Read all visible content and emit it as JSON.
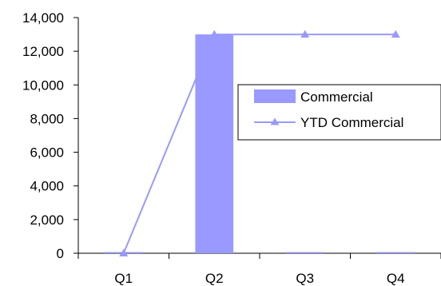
{
  "chart_data": {
    "type": "bar",
    "categories": [
      "Q1",
      "Q2",
      "Q3",
      "Q4"
    ],
    "series": [
      {
        "name": "Commercial",
        "type": "bar",
        "color": "#9999FF",
        "values": [
          0,
          13000,
          0,
          0
        ]
      },
      {
        "name": "YTD Commercial",
        "type": "line",
        "marker": "triangle",
        "color": "#9999FF",
        "values": [
          0,
          13000,
          13000,
          13000
        ]
      }
    ],
    "ylim": [
      0,
      14000
    ],
    "y_ticks": [
      {
        "value": 0,
        "label": "0"
      },
      {
        "value": 2000,
        "label": "2,000"
      },
      {
        "value": 4000,
        "label": "4,000"
      },
      {
        "value": 6000,
        "label": "6,000"
      },
      {
        "value": 8000,
        "label": "8,000"
      },
      {
        "value": 10000,
        "label": "10,000"
      },
      {
        "value": 12000,
        "label": "12,000"
      },
      {
        "value": 14000,
        "label": "14,000"
      }
    ],
    "grid": false,
    "legend": {
      "placement": "right",
      "entries": [
        "Commercial",
        "YTD Commercial"
      ]
    }
  }
}
